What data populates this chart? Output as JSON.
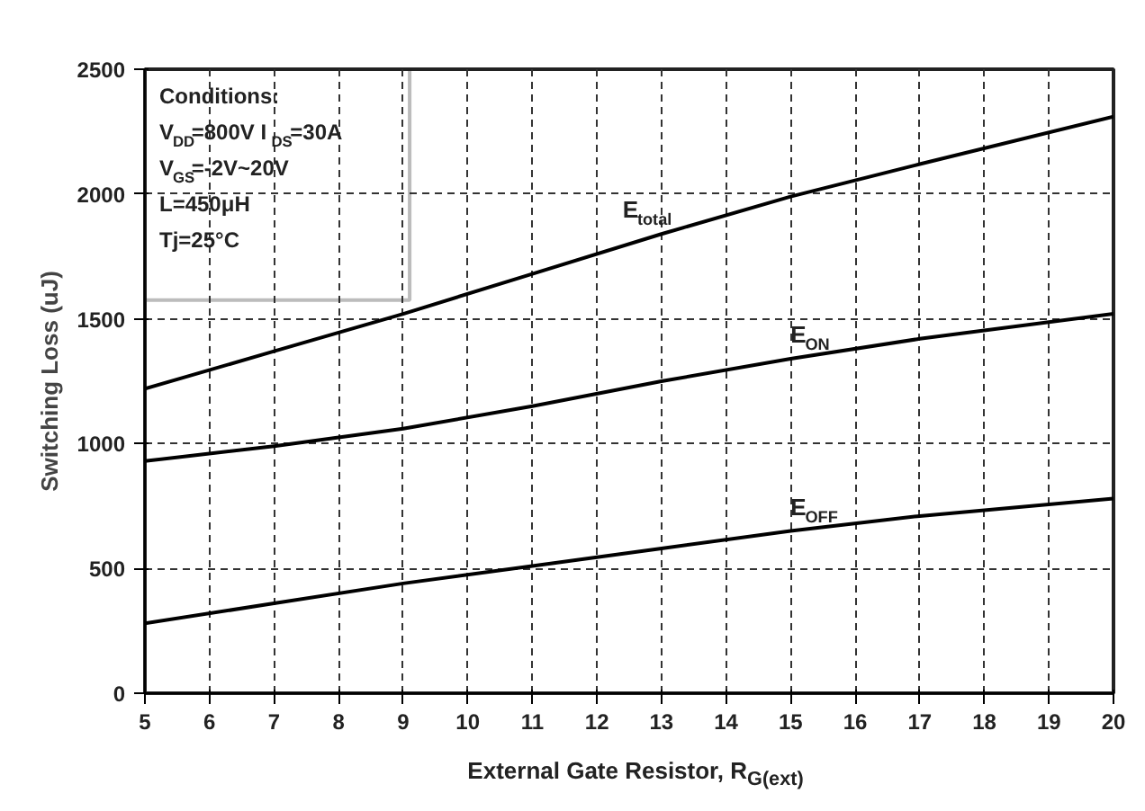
{
  "chart_data": {
    "type": "line",
    "xlabel": "External Gate Resistor, R$_{G(ext)}$",
    "ylabel": "Switching Loss (uJ)",
    "x": [
      5,
      7,
      9,
      11,
      13,
      15,
      17,
      20
    ],
    "series": [
      {
        "name": "E$_{total}$",
        "color": "#000000",
        "values": [
          1220,
          1370,
          1520,
          1680,
          1840,
          1990,
          2120,
          2310
        ]
      },
      {
        "name": "E$_{ON}$",
        "color": "#000000",
        "values": [
          930,
          990,
          1060,
          1150,
          1250,
          1340,
          1420,
          1520
        ]
      },
      {
        "name": "E$_{OFF}$",
        "color": "#000000",
        "values": [
          280,
          360,
          440,
          510,
          580,
          650,
          710,
          780
        ]
      }
    ],
    "xlim": [
      5,
      20
    ],
    "xticks": [
      5,
      6,
      7,
      8,
      9,
      10,
      11,
      12,
      13,
      14,
      15,
      16,
      17,
      18,
      19,
      20
    ],
    "ylim": [
      0,
      2500
    ],
    "yticks": [
      0,
      500,
      1000,
      1500,
      2000,
      2500
    ],
    "grid": true,
    "legend": false,
    "marker": "none",
    "line_style": "solid",
    "annotations": [
      "Conditions:",
      "V$_{DD}$=800V I$_{DS}$=30A",
      "V$_{GS}$=-2V~20V",
      "L=450μH",
      "Tj=25°C"
    ]
  }
}
